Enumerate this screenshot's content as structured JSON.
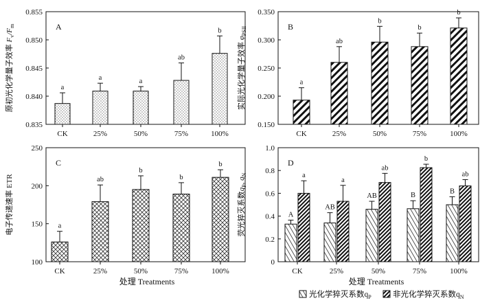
{
  "figure": {
    "xlabel": "处理 Treatments",
    "legend": {
      "items": [
        {
          "label": "光化学猝灭系数q",
          "sub": "P",
          "pattern": "hatch-light"
        },
        {
          "label": "非光化学猝灭系数q",
          "sub": "N",
          "pattern": "hatch-dark"
        }
      ]
    }
  },
  "chart_data": [
    {
      "type": "bar",
      "panel": "A",
      "pattern": "dots",
      "ylabel": "原初光化学量子效率Fv/Fm",
      "ylabel_parts": [
        "原初光化学量子效率 ",
        "F",
        "v",
        "/F",
        "m"
      ],
      "categories": [
        "CK",
        "25%",
        "50%",
        "75%",
        "100%"
      ],
      "values": [
        0.8387,
        0.8409,
        0.8409,
        0.8428,
        0.8476
      ],
      "errors": [
        0.0019,
        0.0014,
        0.0008,
        0.0031,
        0.0031
      ],
      "sig": [
        "a",
        "a",
        "a",
        "ab",
        "b"
      ],
      "ylim": [
        0.835,
        0.855
      ],
      "yticks": [
        0.835,
        0.84,
        0.845,
        0.85,
        0.855
      ],
      "ytick_labels": [
        "0.835",
        "0.840",
        "0.845",
        "0.850",
        "0.855"
      ]
    },
    {
      "type": "bar",
      "panel": "B",
      "pattern": "diag-dense",
      "ylabel": "实际光化学量子效率φPSII",
      "ylabel_parts": [
        "实际光化学量子效率 ",
        "φ",
        "PSII"
      ],
      "categories": [
        "CK",
        "25%",
        "50%",
        "75%",
        "100%"
      ],
      "values": [
        0.193,
        0.26,
        0.296,
        0.288,
        0.321
      ],
      "errors": [
        0.022,
        0.028,
        0.028,
        0.024,
        0.018
      ],
      "sig": [
        "a",
        "ab",
        "b",
        "b",
        "b"
      ],
      "ylim": [
        0.15,
        0.35
      ],
      "yticks": [
        0.15,
        0.2,
        0.25,
        0.3,
        0.35
      ],
      "ytick_labels": [
        "0.150",
        "0.200",
        "0.250",
        "0.300",
        "0.350"
      ]
    },
    {
      "type": "bar",
      "panel": "C",
      "pattern": "cross",
      "ylabel": "电子传递速率 ETR",
      "ylabel_parts": [
        "电子传递速率 ETR"
      ],
      "categories": [
        "CK",
        "25%",
        "50%",
        "75%",
        "100%"
      ],
      "values": [
        126,
        179,
        195,
        189,
        211
      ],
      "errors": [
        14,
        22,
        18,
        15,
        10
      ],
      "sig": [
        "a",
        "ab",
        "b",
        "b",
        "b"
      ],
      "ylim": [
        100,
        250
      ],
      "yticks": [
        100,
        150,
        200,
        250
      ],
      "ytick_labels": [
        "100",
        "150",
        "200",
        "250"
      ]
    },
    {
      "type": "bar",
      "panel": "D",
      "ylabel": "荧光猝灭系数qP, qN",
      "ylabel_parts": [
        "荧光猝灭系数",
        "q",
        "P",
        ", q",
        "N"
      ],
      "categories": [
        "CK",
        "25%",
        "50%",
        "75%",
        "100%"
      ],
      "series": [
        {
          "name": "光化学猝灭系数qP",
          "pattern": "hatch-light",
          "values": [
            0.33,
            0.34,
            0.46,
            0.465,
            0.5
          ],
          "errors": [
            0.035,
            0.09,
            0.07,
            0.07,
            0.07
          ],
          "sig": [
            "A",
            "AB",
            "AB",
            "B",
            "B"
          ]
        },
        {
          "name": "非光化学猝灭系数qN",
          "pattern": "hatch-dark",
          "values": [
            0.6,
            0.53,
            0.695,
            0.825,
            0.665
          ],
          "errors": [
            0.11,
            0.14,
            0.08,
            0.03,
            0.055
          ],
          "sig": [
            "a",
            "a",
            "ab",
            "b",
            "ab"
          ]
        }
      ],
      "ylim": [
        0,
        1.0
      ],
      "yticks": [
        0,
        0.2,
        0.4,
        0.6,
        0.8,
        1.0
      ],
      "ytick_labels": [
        "0",
        "0.2",
        "0.4",
        "0.6",
        "0.8",
        "1.0"
      ]
    }
  ]
}
